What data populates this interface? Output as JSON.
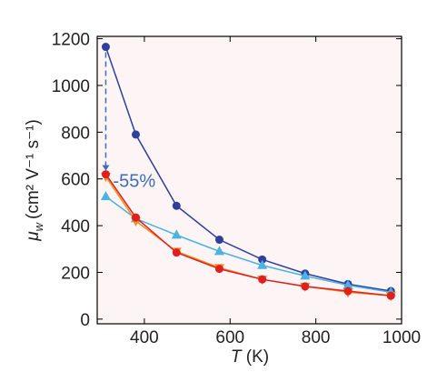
{
  "chart_data": {
    "type": "line",
    "x_label": {
      "symbol": "T",
      "unit": "(K)"
    },
    "y_label": {
      "symbol": "μ",
      "subscript": "w",
      "unit": "(cm² V⁻¹ s⁻¹)"
    },
    "annotation": "-55%",
    "x": [
      310,
      380,
      475,
      575,
      675,
      775,
      875,
      975
    ],
    "series": [
      {
        "color": "#2e3f9e",
        "marker": "circle",
        "values": [
          1165,
          790,
          485,
          340,
          255,
          195,
          150,
          120
        ]
      },
      {
        "color": "#4bb3e0",
        "marker": "triangle",
        "values": [
          525,
          430,
          360,
          290,
          230,
          185,
          145,
          115
        ]
      },
      {
        "color": "#f0901e",
        "marker": "triangle-down",
        "values": [
          610,
          420,
          290,
          220,
          170,
          140,
          115,
          100
        ]
      },
      {
        "color": "#e02020",
        "marker": "circle",
        "values": [
          620,
          435,
          285,
          215,
          170,
          140,
          120,
          100
        ]
      }
    ],
    "xlim": [
      290,
      1000
    ],
    "ylim": [
      -20,
      1210
    ],
    "xticks": [
      400,
      600,
      800,
      1000
    ],
    "yticks": [
      0,
      200,
      400,
      600,
      800,
      1000,
      1200
    ]
  }
}
